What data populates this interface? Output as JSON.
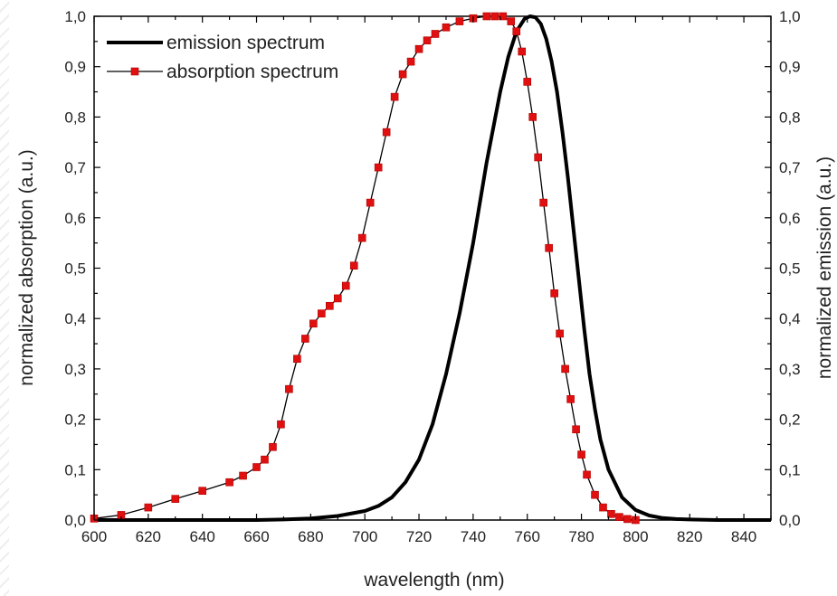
{
  "chart_data": {
    "type": "line",
    "xlabel": "wavelength (nm)",
    "ylabel": "normalized absorption (a.u.)",
    "ylabel_right": "normalized emission (a.u.)",
    "xlim": [
      600,
      850
    ],
    "ylim": [
      0.0,
      1.0
    ],
    "x_ticks": [
      "600",
      "620",
      "640",
      "660",
      "680",
      "700",
      "720",
      "740",
      "760",
      "780",
      "800",
      "820",
      "840"
    ],
    "y_ticks": [
      "0,0",
      "0,1",
      "0,2",
      "0,3",
      "0,4",
      "0,5",
      "0,6",
      "0,7",
      "0,8",
      "0,9",
      "1,0"
    ],
    "grid": false,
    "legend_position": "top-left",
    "series": [
      {
        "name": "emission spectrum",
        "color": "#000000",
        "marker": "none",
        "x": [
          600,
          610,
          620,
          630,
          640,
          650,
          660,
          670,
          680,
          690,
          700,
          705,
          710,
          715,
          720,
          725,
          730,
          735,
          740,
          745,
          750,
          753,
          756,
          759,
          761,
          763,
          765,
          767,
          769,
          771,
          773,
          775,
          777,
          779,
          781,
          783,
          785,
          787,
          790,
          795,
          800,
          805,
          810,
          815,
          820,
          830,
          840,
          850
        ],
        "y": [
          0.0,
          0.0,
          0.0,
          0.0,
          0.0,
          0.0,
          0.0,
          0.001,
          0.003,
          0.008,
          0.018,
          0.028,
          0.045,
          0.075,
          0.12,
          0.19,
          0.29,
          0.41,
          0.55,
          0.71,
          0.85,
          0.92,
          0.97,
          0.995,
          1.0,
          0.998,
          0.985,
          0.955,
          0.91,
          0.85,
          0.77,
          0.68,
          0.58,
          0.48,
          0.38,
          0.29,
          0.22,
          0.16,
          0.1,
          0.045,
          0.02,
          0.009,
          0.004,
          0.002,
          0.001,
          0.0,
          0.0,
          0.0
        ]
      },
      {
        "name": "absorption spectrum",
        "color": "#e01010",
        "marker": "square",
        "x": [
          600,
          610,
          620,
          630,
          640,
          650,
          655,
          660,
          663,
          666,
          669,
          672,
          675,
          678,
          681,
          684,
          687,
          690,
          693,
          696,
          699,
          702,
          705,
          708,
          711,
          714,
          717,
          720,
          723,
          726,
          730,
          735,
          740,
          745,
          748,
          751,
          754,
          756,
          758,
          760,
          762,
          764,
          766,
          768,
          770,
          772,
          774,
          776,
          778,
          780,
          782,
          785,
          788,
          791,
          794,
          797,
          800
        ],
        "y": [
          0.003,
          0.01,
          0.025,
          0.042,
          0.058,
          0.075,
          0.088,
          0.105,
          0.12,
          0.145,
          0.19,
          0.26,
          0.32,
          0.36,
          0.39,
          0.41,
          0.425,
          0.44,
          0.465,
          0.505,
          0.56,
          0.63,
          0.7,
          0.77,
          0.84,
          0.885,
          0.91,
          0.935,
          0.952,
          0.965,
          0.978,
          0.99,
          0.996,
          1.0,
          1.0,
          1.0,
          0.99,
          0.97,
          0.93,
          0.87,
          0.8,
          0.72,
          0.63,
          0.54,
          0.45,
          0.37,
          0.3,
          0.24,
          0.18,
          0.13,
          0.09,
          0.05,
          0.025,
          0.012,
          0.006,
          0.002,
          0.0
        ]
      }
    ]
  }
}
